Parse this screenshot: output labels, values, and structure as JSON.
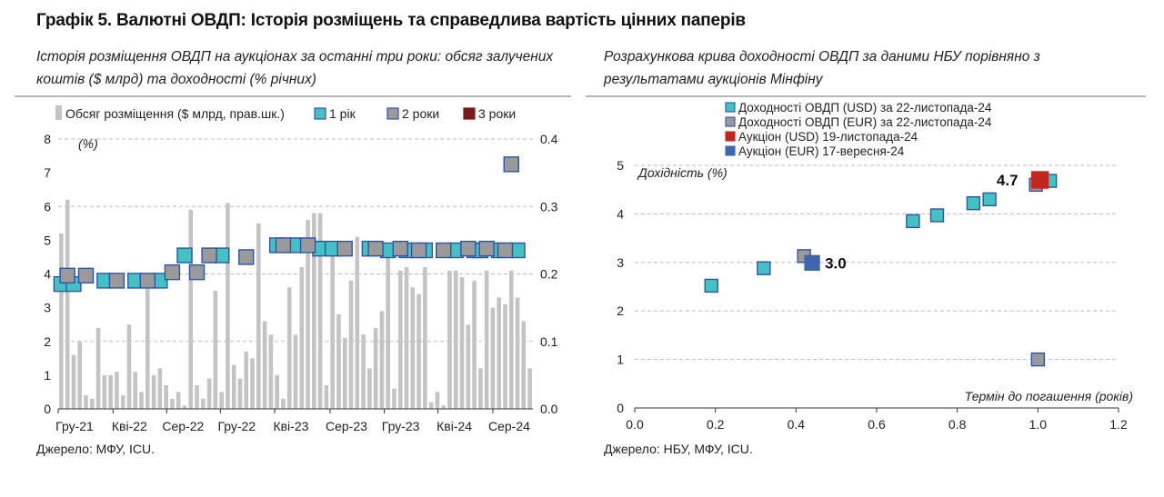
{
  "title": "Графік 5. Валютні ОВДП: Історія розміщень та справедлива вартість цінних паперів",
  "left": {
    "subtitle": "Історія розміщення ОВДП на аукціонах за останні три роки: обсяг залучених коштів ($ млрд) та доходності (% річних)",
    "source": "Джерело: МФУ, ICU."
  },
  "right": {
    "subtitle": "Розрахункова крива доходності ОВДП за даними НБУ порівняно з результатами аукціонів Мінфіну",
    "source": "Джерело: НБУ, МФУ, ICU."
  },
  "colors": {
    "bar": "#c4c4c4",
    "teal": "#46c1c3",
    "gray": "#9a9a9a",
    "darkred": "#7a1b1b",
    "red": "#c0281f",
    "blue": "#3d66ad",
    "border": "#2e55a4",
    "grid": "#bdbdbd"
  },
  "chart_data": [
    {
      "type": "bar",
      "title": "Історія розміщення ОВДП на аукціонах за останні три роки: обсяг залучених коштів ($ млрд) та доходності (% річних)",
      "ylabel": "(%)",
      "ylim": [
        0,
        8
      ],
      "y_ticks": [
        "0",
        "1",
        "2",
        "3",
        "4",
        "5",
        "6",
        "7",
        "8"
      ],
      "y2lim": [
        0,
        0.4
      ],
      "y2_ticks": [
        "0.0",
        "0.1",
        "0.2",
        "0.3",
        "0.4"
      ],
      "x_ticks": [
        "Гру-21",
        "Кві-22",
        "Сер-22",
        "Гру-22",
        "Кві-23",
        "Сер-23",
        "Гру-23",
        "Кві-24",
        "Сер-24"
      ],
      "legend": [
        "Обсяг розміщення ($ млрд, прав.шк.)",
        "1 рік",
        "2 роки",
        "3 роки"
      ],
      "bars_volume_bn": [
        0.26,
        0.31,
        0.08,
        0.1,
        0.02,
        0.015,
        0.12,
        0.05,
        0.05,
        0.055,
        0.02,
        0.125,
        0.055,
        0.025,
        0.2,
        0.05,
        0.06,
        0.035,
        0.015,
        0.025,
        0.005,
        0.295,
        0.035,
        0.015,
        0.045,
        0.175,
        0.025,
        0.305,
        0.065,
        0.045,
        0.085,
        0.075,
        0.275,
        0.13,
        0.11,
        0.05,
        0.015,
        0.18,
        0.11,
        0.21,
        0.28,
        0.29,
        0.29,
        0.035,
        0.23,
        0.14,
        0.105,
        0.19,
        0.255,
        0.11,
        0.06,
        0.12,
        0.145,
        0.235,
        0.03,
        0.205,
        0.21,
        0.18,
        0.17,
        0.21,
        0.01,
        0.025,
        0.005,
        0.205,
        0.205,
        0.195,
        0.125,
        0.19,
        0.06,
        0.205,
        0.15,
        0.165,
        0.155,
        0.205,
        0.165,
        0.13,
        0.06
      ],
      "series": [
        {
          "name": "1 рік",
          "x_index": [
            0,
            2,
            7,
            12,
            16,
            20,
            26,
            35,
            38,
            42,
            44,
            50,
            53,
            56,
            59,
            64,
            67,
            68,
            71,
            74
          ],
          "values": [
            3.7,
            3.7,
            3.8,
            3.8,
            3.8,
            4.55,
            4.55,
            4.85,
            4.85,
            4.75,
            4.75,
            4.75,
            4.7,
            4.7,
            4.7,
            4.7,
            4.7,
            4.7,
            4.7,
            4.7
          ]
        },
        {
          "name": "2 роки",
          "x_index": [
            1,
            4,
            9,
            14,
            18,
            22,
            24,
            30,
            36,
            40,
            46,
            51,
            55,
            58,
            62,
            66,
            69,
            72,
            73
          ],
          "values": [
            3.95,
            3.95,
            3.8,
            3.8,
            4.05,
            4.05,
            4.55,
            4.5,
            4.85,
            4.85,
            4.75,
            4.75,
            4.75,
            4.7,
            4.7,
            4.75,
            4.75,
            4.7,
            7.25
          ]
        },
        {
          "name": "3 роки",
          "x_index": [],
          "values": []
        }
      ]
    },
    {
      "type": "scatter",
      "title": "Розрахункова крива доходності ОВДП за даними НБУ порівняно з результатами аукціонів Мінфіну",
      "xlabel": "Термін до погашення (років)",
      "ylabel": "Дохідність (%)",
      "xlim": [
        0,
        1.2
      ],
      "x_ticks": [
        "0.0",
        "0.2",
        "0.4",
        "0.6",
        "0.8",
        "1.0",
        "1.2"
      ],
      "ylim": [
        0,
        5
      ],
      "y_ticks": [
        "0",
        "1",
        "2",
        "3",
        "4",
        "5"
      ],
      "legend": [
        "Доходності ОВДП (USD) за 22-листопада-24",
        "Доходності ОВДП (EUR) за 22-листопада-24",
        "Аукціон (USD) 19-листопада-24",
        "Аукціон (EUR) 17-вересня-24"
      ],
      "series": [
        {
          "name": "Доходності ОВДП (USD) за 22-листопада-24",
          "x": [
            0.19,
            0.32,
            0.69,
            0.75,
            0.84,
            0.88,
            1.03
          ],
          "y": [
            2.52,
            2.88,
            3.85,
            3.97,
            4.22,
            4.3,
            4.68
          ]
        },
        {
          "name": "Доходності ОВДП (EUR) за 22-листопада-24",
          "x": [
            0.42,
            0.995,
            1.0
          ],
          "y": [
            3.13,
            4.6,
            1.0
          ]
        },
        {
          "name": "Аукціон (USD) 19-листопада-24",
          "x": [
            1.005
          ],
          "y": [
            4.7
          ],
          "labels": [
            "4.7"
          ]
        },
        {
          "name": "Аукціон (EUR) 17-вересня-24",
          "x": [
            0.44
          ],
          "y": [
            2.99
          ],
          "labels": [
            "3.0"
          ]
        }
      ]
    }
  ]
}
